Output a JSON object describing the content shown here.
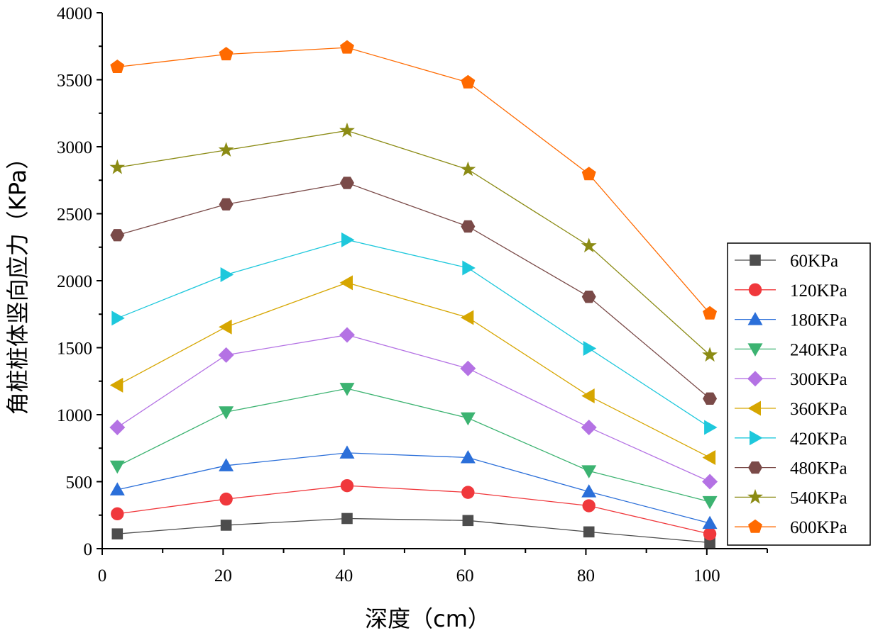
{
  "chart_data": {
    "type": "line",
    "title": "",
    "xlabel": "深度（cm）",
    "ylabel": "角桩桩体竖向应力（KPa）",
    "xlim": [
      0,
      110
    ],
    "ylim": [
      0,
      4000
    ],
    "x_ticks": [
      0,
      20,
      40,
      60,
      80,
      100
    ],
    "y_ticks": [
      0,
      500,
      1000,
      1500,
      2000,
      2500,
      3000,
      3500,
      4000
    ],
    "grid": false,
    "legend_position": "right",
    "x": [
      2.5,
      20.5,
      40.5,
      60.5,
      80.5,
      100.5
    ],
    "series": [
      {
        "name": "60KPa",
        "marker": "square",
        "color": "#4d4d4d",
        "values": [
          110,
          175,
          225,
          210,
          125,
          45
        ]
      },
      {
        "name": "120KPa",
        "marker": "circle",
        "color": "#f0383c",
        "values": [
          260,
          370,
          470,
          420,
          320,
          110
        ]
      },
      {
        "name": "180KPa",
        "marker": "triangle-up",
        "color": "#2b6fd9",
        "values": [
          440,
          620,
          715,
          680,
          425,
          190
        ]
      },
      {
        "name": "240KPa",
        "marker": "triangle-down",
        "color": "#3cb371",
        "values": [
          615,
          1020,
          1195,
          975,
          580,
          350
        ]
      },
      {
        "name": "300KPa",
        "marker": "diamond",
        "color": "#b472e4",
        "values": [
          905,
          1445,
          1595,
          1345,
          905,
          500
        ]
      },
      {
        "name": "360KPa",
        "marker": "triangle-left",
        "color": "#d6a600",
        "values": [
          1220,
          1655,
          1985,
          1725,
          1140,
          680
        ]
      },
      {
        "name": "420KPa",
        "marker": "triangle-right",
        "color": "#1ec8dc",
        "values": [
          1720,
          2045,
          2305,
          2095,
          1495,
          905
        ]
      },
      {
        "name": "480KPa",
        "marker": "hexagon",
        "color": "#7a4a48",
        "values": [
          2340,
          2570,
          2730,
          2405,
          1880,
          1120
        ]
      },
      {
        "name": "540KPa",
        "marker": "star",
        "color": "#8b8b14",
        "values": [
          2845,
          2975,
          3120,
          2830,
          2260,
          1445
        ]
      },
      {
        "name": "600KPa",
        "marker": "pentagon",
        "color": "#ff6a00",
        "values": [
          3595,
          3690,
          3740,
          3480,
          2795,
          1755
        ]
      }
    ]
  }
}
